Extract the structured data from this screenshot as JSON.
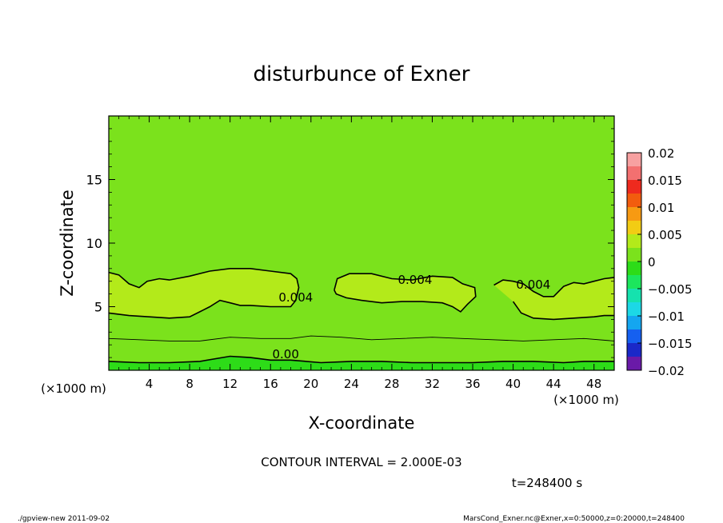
{
  "chart_data": {
    "type": "heatmap",
    "title": "disturbunce of Exner",
    "xlabel": "X-coordinate",
    "ylabel": "Z-coordinate",
    "x_unit": "(×1000 m)",
    "xlim": [
      0,
      50
    ],
    "ylim": [
      0,
      20
    ],
    "x_ticks": [
      4,
      8,
      12,
      16,
      20,
      24,
      28,
      32,
      36,
      40,
      44,
      48
    ],
    "y_ticks": [
      5,
      10,
      15
    ],
    "colorbar": {
      "min": -0.02,
      "max": 0.02,
      "tick_labels": [
        "0.02",
        "0.015",
        "0.01",
        "0.005",
        "0",
        "−0.005",
        "−0.01",
        "−0.015",
        "−0.02"
      ],
      "levels": [
        {
          "from": 0.0175,
          "to": 0.02,
          "color": "#f7a1a1"
        },
        {
          "from": 0.015,
          "to": 0.0175,
          "color": "#f37070"
        },
        {
          "from": 0.0125,
          "to": 0.015,
          "color": "#ee2a1e"
        },
        {
          "from": 0.01,
          "to": 0.0125,
          "color": "#f25c0e"
        },
        {
          "from": 0.0075,
          "to": 0.01,
          "color": "#f79a12"
        },
        {
          "from": 0.005,
          "to": 0.0075,
          "color": "#f2cc14"
        },
        {
          "from": 0.0025,
          "to": 0.005,
          "color": "#b3ea1a"
        },
        {
          "from": 0.0,
          "to": 0.0025,
          "color": "#7be21c"
        },
        {
          "from": -0.0025,
          "to": 0.0,
          "color": "#2ddc18"
        },
        {
          "from": -0.005,
          "to": -0.0025,
          "color": "#1ce65c"
        },
        {
          "from": -0.0075,
          "to": -0.005,
          "color": "#15e2ae"
        },
        {
          "from": -0.01,
          "to": -0.0075,
          "color": "#1cd8e6"
        },
        {
          "from": -0.0125,
          "to": -0.01,
          "color": "#14a6f0"
        },
        {
          "from": -0.015,
          "to": -0.0125,
          "color": "#1560f0"
        },
        {
          "from": -0.0175,
          "to": -0.015,
          "color": "#1a28c8"
        },
        {
          "from": -0.02,
          "to": -0.0175,
          "color": "#6a1aa8"
        }
      ]
    },
    "contour_interval_text": "CONTOUR INTERVAL = 2.000E-03",
    "contours": [
      {
        "label": "0.004",
        "label_positions": [
          [
            18.5,
            5.4
          ],
          [
            30.3,
            6.8
          ],
          [
            42.0,
            6.4
          ]
        ],
        "segments": [
          [
            [
              0,
              4.5
            ],
            [
              2,
              4.3
            ],
            [
              4,
              4.2
            ],
            [
              6,
              4.1
            ],
            [
              8,
              4.2
            ],
            [
              9,
              4.6
            ],
            [
              10,
              5.0
            ],
            [
              11,
              5.5
            ],
            [
              12,
              5.3
            ],
            [
              13,
              5.1
            ],
            [
              14,
              5.1
            ],
            [
              16,
              5.0
            ],
            [
              18,
              5.0
            ],
            [
              18.5,
              5.5
            ],
            [
              18.8,
              6.5
            ],
            [
              18.6,
              7.2
            ],
            [
              18,
              7.6
            ],
            [
              16,
              7.8
            ],
            [
              14,
              8.0
            ],
            [
              12,
              8.0
            ],
            [
              10,
              7.8
            ],
            [
              8,
              7.4
            ],
            [
              6,
              7.1
            ],
            [
              5,
              7.2
            ],
            [
              3.8,
              7.0
            ],
            [
              3,
              6.5
            ],
            [
              2,
              6.8
            ],
            [
              1,
              7.5
            ],
            [
              0,
              7.7
            ]
          ],
          [
            [
              22.3,
              6.3
            ],
            [
              22.6,
              7.2
            ],
            [
              23.8,
              7.6
            ],
            [
              26,
              7.6
            ],
            [
              28,
              7.2
            ],
            [
              30,
              7.1
            ],
            [
              32,
              7.4
            ],
            [
              34,
              7.3
            ],
            [
              35,
              6.8
            ],
            [
              36.2,
              6.5
            ],
            [
              36.3,
              5.8
            ],
            [
              35.5,
              5.2
            ],
            [
              34.8,
              4.6
            ],
            [
              34,
              5.0
            ],
            [
              33,
              5.3
            ],
            [
              31,
              5.4
            ],
            [
              29,
              5.4
            ],
            [
              27,
              5.3
            ],
            [
              25,
              5.5
            ],
            [
              23.5,
              5.7
            ],
            [
              22.5,
              6.0
            ],
            [
              22.3,
              6.3
            ]
          ],
          [
            [
              38.1,
              6.7
            ],
            [
              39,
              7.1
            ],
            [
              40,
              7.0
            ],
            [
              41,
              6.8
            ],
            [
              42,
              6.2
            ],
            [
              43,
              5.8
            ],
            [
              44,
              5.8
            ],
            [
              45,
              6.6
            ],
            [
              46,
              6.9
            ],
            [
              47,
              6.8
            ],
            [
              48,
              7.0
            ],
            [
              49,
              7.2
            ],
            [
              50,
              7.3
            ]
          ],
          [
            [
              40,
              5.4
            ],
            [
              40.8,
              4.5
            ],
            [
              42,
              4.1
            ],
            [
              44,
              4.0
            ],
            [
              46,
              4.1
            ],
            [
              48,
              4.2
            ],
            [
              49,
              4.3
            ],
            [
              50,
              4.3
            ]
          ]
        ]
      },
      {
        "label": "",
        "segments": [
          [
            [
              0,
              2.5
            ],
            [
              3,
              2.4
            ],
            [
              6,
              2.3
            ],
            [
              9,
              2.3
            ],
            [
              12,
              2.6
            ],
            [
              15,
              2.5
            ],
            [
              18,
              2.5
            ],
            [
              20,
              2.7
            ],
            [
              23,
              2.6
            ],
            [
              26,
              2.4
            ],
            [
              29,
              2.5
            ],
            [
              32,
              2.6
            ],
            [
              35,
              2.5
            ],
            [
              38,
              2.4
            ],
            [
              41,
              2.3
            ],
            [
              44,
              2.4
            ],
            [
              47,
              2.5
            ],
            [
              50,
              2.3
            ]
          ]
        ]
      },
      {
        "label": "0.00",
        "label_positions": [
          [
            17.5,
            0.95
          ]
        ],
        "segments": [
          [
            [
              0,
              0.7
            ],
            [
              3,
              0.6
            ],
            [
              6,
              0.6
            ],
            [
              9,
              0.7
            ],
            [
              12,
              1.1
            ],
            [
              14,
              1.0
            ],
            [
              16,
              0.8
            ],
            [
              18,
              0.8
            ],
            [
              21,
              0.6
            ],
            [
              24,
              0.7
            ],
            [
              27,
              0.7
            ],
            [
              30,
              0.6
            ],
            [
              33,
              0.6
            ],
            [
              36,
              0.6
            ],
            [
              39,
              0.7
            ],
            [
              42,
              0.7
            ],
            [
              45,
              0.6
            ],
            [
              47,
              0.7
            ],
            [
              50,
              0.7
            ]
          ]
        ]
      }
    ]
  },
  "labels": {
    "time": "t=248400 s",
    "footer_left": "./gpview-new  2011-09-02",
    "footer_right": "MarsCond_Exner.nc@Exner,x=0:50000,z=0:20000,t=248400"
  }
}
